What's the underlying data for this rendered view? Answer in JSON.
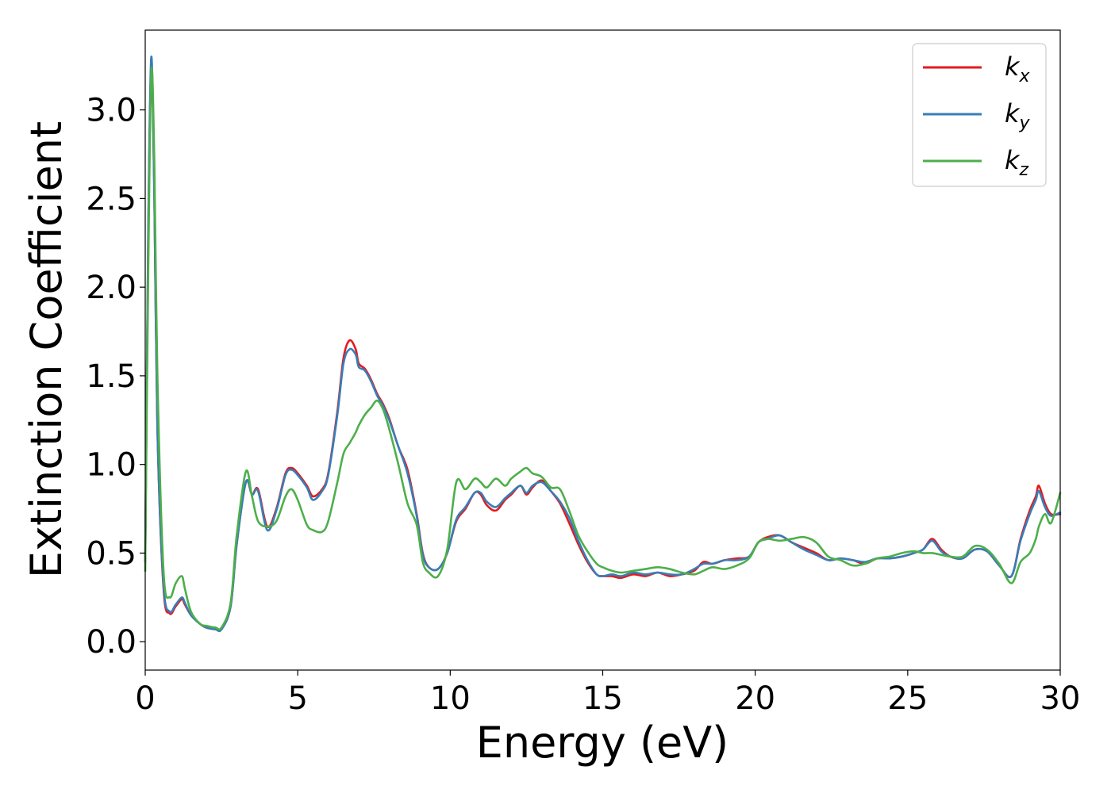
{
  "chart_data": {
    "type": "line",
    "xlabel": "Energy (eV)",
    "ylabel": "Extinction Coefficient",
    "xlim": [
      0,
      30
    ],
    "ylim": [
      -0.16,
      3.45
    ],
    "xticks": [
      0,
      5,
      10,
      15,
      20,
      25,
      30
    ],
    "xtick_labels": [
      "0",
      "5",
      "10",
      "15",
      "20",
      "25",
      "30"
    ],
    "yticks": [
      0.0,
      0.5,
      1.0,
      1.5,
      2.0,
      2.5,
      3.0
    ],
    "ytick_labels": [
      "0.0",
      "0.5",
      "1.0",
      "1.5",
      "2.0",
      "2.5",
      "3.0"
    ],
    "grid": false,
    "legend_position": "top-right",
    "series": [
      {
        "name": "k",
        "subscript": "x",
        "color": "#e41a1c",
        "x": [
          0.0,
          0.1,
          0.2,
          0.3,
          0.4,
          0.6,
          0.8,
          1.0,
          1.2,
          1.3,
          1.5,
          1.8,
          2.0,
          2.3,
          2.5,
          2.8,
          3.0,
          3.3,
          3.5,
          3.7,
          4.0,
          4.3,
          4.6,
          4.8,
          5.0,
          5.3,
          5.5,
          5.8,
          6.0,
          6.3,
          6.5,
          6.7,
          6.9,
          7.0,
          7.2,
          7.4,
          7.6,
          7.8,
          8.0,
          8.3,
          8.6,
          8.9,
          9.1,
          9.3,
          9.6,
          9.9,
          10.2,
          10.5,
          10.8,
          11.0,
          11.2,
          11.5,
          11.8,
          12.0,
          12.3,
          12.5,
          12.7,
          13.0,
          13.3,
          13.6,
          13.9,
          14.2,
          14.5,
          14.8,
          15.0,
          15.3,
          15.6,
          16.0,
          16.4,
          16.8,
          17.2,
          17.6,
          18.0,
          18.3,
          18.6,
          19.0,
          19.4,
          19.8,
          20.1,
          20.4,
          20.8,
          21.2,
          21.6,
          22.0,
          22.4,
          22.8,
          23.2,
          23.6,
          24.0,
          24.4,
          24.8,
          25.2,
          25.5,
          25.8,
          26.1,
          26.4,
          26.8,
          27.2,
          27.6,
          28.0,
          28.4,
          28.7,
          29.0,
          29.2,
          29.3,
          29.5,
          29.7,
          30.0
        ],
        "values": [
          0.45,
          2.3,
          3.25,
          2.5,
          1.2,
          0.3,
          0.16,
          0.2,
          0.24,
          0.21,
          0.15,
          0.1,
          0.08,
          0.07,
          0.07,
          0.2,
          0.55,
          0.9,
          0.83,
          0.86,
          0.65,
          0.75,
          0.95,
          0.98,
          0.95,
          0.88,
          0.82,
          0.86,
          0.95,
          1.3,
          1.6,
          1.7,
          1.65,
          1.57,
          1.54,
          1.48,
          1.4,
          1.34,
          1.26,
          1.1,
          0.97,
          0.72,
          0.5,
          0.42,
          0.41,
          0.5,
          0.68,
          0.75,
          0.84,
          0.83,
          0.77,
          0.74,
          0.8,
          0.83,
          0.88,
          0.83,
          0.87,
          0.91,
          0.85,
          0.78,
          0.67,
          0.55,
          0.45,
          0.38,
          0.37,
          0.37,
          0.36,
          0.38,
          0.37,
          0.39,
          0.37,
          0.38,
          0.4,
          0.45,
          0.44,
          0.46,
          0.47,
          0.48,
          0.56,
          0.59,
          0.6,
          0.56,
          0.53,
          0.5,
          0.46,
          0.47,
          0.46,
          0.44,
          0.47,
          0.47,
          0.48,
          0.5,
          0.52,
          0.58,
          0.52,
          0.48,
          0.47,
          0.52,
          0.51,
          0.43,
          0.37,
          0.58,
          0.74,
          0.82,
          0.88,
          0.78,
          0.72,
          0.72
        ]
      },
      {
        "name": "k",
        "subscript": "y",
        "color": "#377eb8",
        "x": [
          0.0,
          0.1,
          0.2,
          0.3,
          0.4,
          0.6,
          0.8,
          1.0,
          1.2,
          1.3,
          1.5,
          1.8,
          2.0,
          2.3,
          2.5,
          2.8,
          3.0,
          3.3,
          3.5,
          3.7,
          4.0,
          4.3,
          4.6,
          4.8,
          5.0,
          5.3,
          5.5,
          5.8,
          6.0,
          6.3,
          6.5,
          6.7,
          6.9,
          7.0,
          7.2,
          7.4,
          7.6,
          7.8,
          8.0,
          8.3,
          8.6,
          8.9,
          9.1,
          9.3,
          9.6,
          9.9,
          10.2,
          10.5,
          10.8,
          11.0,
          11.2,
          11.5,
          11.8,
          12.0,
          12.3,
          12.5,
          12.7,
          13.0,
          13.3,
          13.6,
          13.9,
          14.2,
          14.5,
          14.8,
          15.0,
          15.3,
          15.6,
          16.0,
          16.4,
          16.8,
          17.2,
          17.6,
          18.0,
          18.3,
          18.6,
          19.0,
          19.4,
          19.8,
          20.1,
          20.4,
          20.8,
          21.2,
          21.6,
          22.0,
          22.4,
          22.8,
          23.2,
          23.6,
          24.0,
          24.4,
          24.8,
          25.2,
          25.5,
          25.8,
          26.1,
          26.4,
          26.8,
          27.2,
          27.6,
          28.0,
          28.4,
          28.7,
          29.0,
          29.2,
          29.3,
          29.5,
          29.7,
          30.0
        ],
        "values": [
          0.45,
          2.35,
          3.3,
          2.5,
          1.2,
          0.32,
          0.17,
          0.21,
          0.25,
          0.22,
          0.15,
          0.1,
          0.08,
          0.07,
          0.07,
          0.2,
          0.55,
          0.9,
          0.83,
          0.85,
          0.63,
          0.74,
          0.94,
          0.97,
          0.94,
          0.87,
          0.8,
          0.85,
          0.94,
          1.28,
          1.57,
          1.65,
          1.62,
          1.55,
          1.53,
          1.47,
          1.39,
          1.33,
          1.25,
          1.1,
          0.95,
          0.71,
          0.49,
          0.42,
          0.41,
          0.5,
          0.69,
          0.76,
          0.84,
          0.84,
          0.79,
          0.76,
          0.81,
          0.84,
          0.88,
          0.84,
          0.88,
          0.9,
          0.85,
          0.79,
          0.7,
          0.57,
          0.46,
          0.38,
          0.37,
          0.38,
          0.37,
          0.39,
          0.38,
          0.39,
          0.38,
          0.38,
          0.41,
          0.44,
          0.44,
          0.46,
          0.46,
          0.48,
          0.56,
          0.58,
          0.6,
          0.56,
          0.52,
          0.49,
          0.46,
          0.47,
          0.46,
          0.45,
          0.47,
          0.47,
          0.48,
          0.5,
          0.52,
          0.57,
          0.51,
          0.48,
          0.47,
          0.52,
          0.51,
          0.43,
          0.37,
          0.57,
          0.72,
          0.8,
          0.85,
          0.76,
          0.71,
          0.73
        ]
      },
      {
        "name": "k",
        "subscript": "z",
        "color": "#4daf4a",
        "x": [
          0.0,
          0.1,
          0.2,
          0.3,
          0.4,
          0.6,
          0.8,
          1.0,
          1.2,
          1.3,
          1.5,
          1.8,
          2.0,
          2.3,
          2.5,
          2.8,
          3.0,
          3.3,
          3.5,
          3.7,
          4.0,
          4.3,
          4.6,
          4.8,
          5.0,
          5.3,
          5.5,
          5.8,
          6.0,
          6.3,
          6.5,
          6.7,
          6.9,
          7.0,
          7.2,
          7.4,
          7.6,
          7.8,
          8.0,
          8.3,
          8.6,
          8.9,
          9.1,
          9.3,
          9.6,
          9.9,
          10.2,
          10.5,
          10.8,
          11.0,
          11.2,
          11.5,
          11.8,
          12.0,
          12.3,
          12.5,
          12.7,
          13.0,
          13.3,
          13.6,
          13.9,
          14.2,
          14.5,
          14.8,
          15.0,
          15.3,
          15.6,
          16.0,
          16.4,
          16.8,
          17.2,
          17.6,
          18.0,
          18.3,
          18.6,
          19.0,
          19.4,
          19.8,
          20.1,
          20.4,
          20.8,
          21.2,
          21.6,
          22.0,
          22.4,
          22.8,
          23.2,
          23.6,
          24.0,
          24.4,
          24.8,
          25.2,
          25.5,
          25.8,
          26.1,
          26.4,
          26.8,
          27.2,
          27.6,
          28.0,
          28.4,
          28.7,
          29.0,
          29.2,
          29.3,
          29.5,
          29.7,
          30.0
        ],
        "values": [
          0.4,
          2.1,
          3.22,
          2.7,
          1.5,
          0.4,
          0.25,
          0.33,
          0.37,
          0.3,
          0.17,
          0.1,
          0.09,
          0.08,
          0.08,
          0.22,
          0.6,
          0.96,
          0.82,
          0.68,
          0.65,
          0.68,
          0.82,
          0.86,
          0.8,
          0.66,
          0.63,
          0.62,
          0.68,
          0.9,
          1.06,
          1.12,
          1.18,
          1.22,
          1.28,
          1.32,
          1.36,
          1.31,
          1.2,
          1.0,
          0.78,
          0.66,
          0.45,
          0.39,
          0.37,
          0.52,
          0.9,
          0.86,
          0.92,
          0.9,
          0.87,
          0.92,
          0.88,
          0.92,
          0.96,
          0.98,
          0.95,
          0.93,
          0.87,
          0.86,
          0.74,
          0.6,
          0.51,
          0.44,
          0.42,
          0.4,
          0.39,
          0.4,
          0.41,
          0.42,
          0.41,
          0.39,
          0.38,
          0.4,
          0.42,
          0.41,
          0.43,
          0.47,
          0.56,
          0.58,
          0.57,
          0.58,
          0.59,
          0.56,
          0.48,
          0.46,
          0.43,
          0.44,
          0.47,
          0.48,
          0.5,
          0.51,
          0.5,
          0.5,
          0.49,
          0.48,
          0.48,
          0.54,
          0.52,
          0.44,
          0.33,
          0.45,
          0.5,
          0.58,
          0.65,
          0.72,
          0.67,
          0.84
        ]
      }
    ]
  }
}
